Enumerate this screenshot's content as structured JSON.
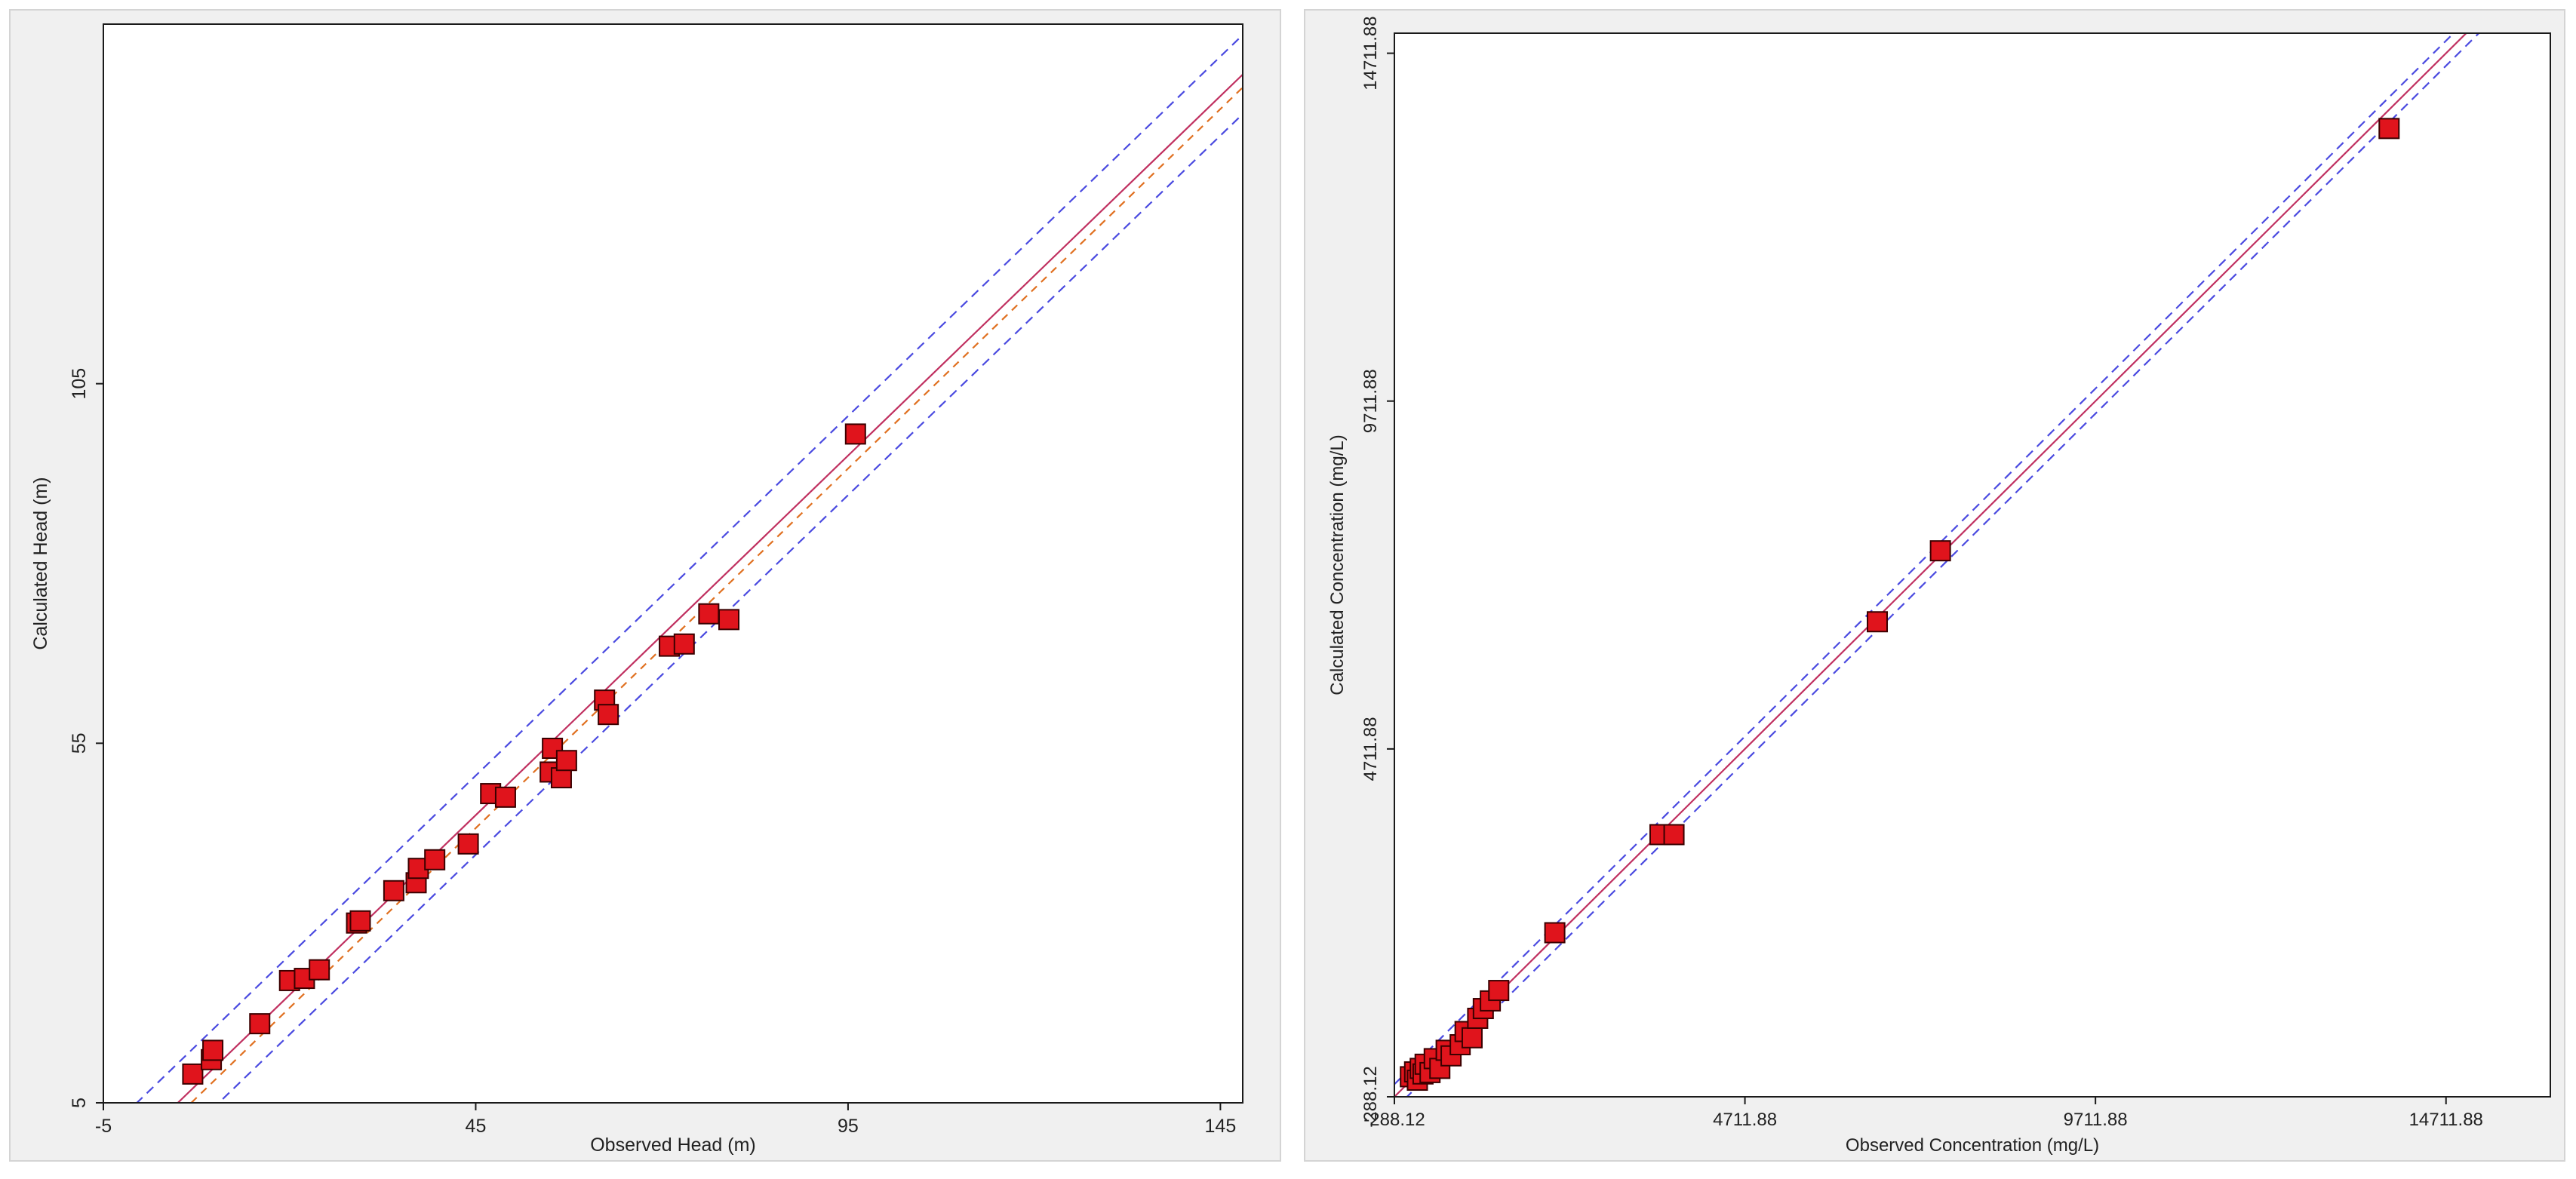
{
  "colors": {
    "marker_fill": "#e0141c",
    "marker_stroke": "#3a0000",
    "diag_line": "#c03060",
    "conf_line": "#4a4ae0",
    "pred_line": "#e07020"
  },
  "chart_data": [
    {
      "type": "scatter",
      "title": "",
      "xlabel": "Observed Head (m)",
      "ylabel": "Calculated Head (m)",
      "xlim": [
        -5,
        148
      ],
      "ylim": [
        5,
        155
      ],
      "xticks": [
        "-5",
        "45",
        "95",
        "145"
      ],
      "yticks": [
        "5",
        "55",
        "105"
      ],
      "xtick_values": [
        -5,
        45,
        95,
        145
      ],
      "ytick_values": [
        5,
        55,
        105
      ],
      "series": [
        {
          "points": [
            [
              7,
              9
            ],
            [
              9.5,
              11
            ],
            [
              9.7,
              12.3
            ],
            [
              16,
              16
            ],
            [
              20,
              22
            ],
            [
              22,
              22.3
            ],
            [
              24,
              23.5
            ],
            [
              29,
              30
            ],
            [
              29.5,
              30.3
            ],
            [
              34,
              34.5
            ],
            [
              37,
              35.6
            ],
            [
              37.3,
              37.6
            ],
            [
              39.5,
              38.8
            ],
            [
              44,
              41
            ],
            [
              47,
              48
            ],
            [
              49,
              47.5
            ],
            [
              55,
              51
            ],
            [
              55.3,
              54.3
            ],
            [
              56.5,
              50.2
            ],
            [
              57.2,
              52.6
            ],
            [
              62.3,
              61
            ],
            [
              62.8,
              59
            ],
            [
              71,
              68.5
            ],
            [
              73,
              68.8
            ],
            [
              76.3,
              73
            ],
            [
              79,
              72.2
            ],
            [
              96,
              98
            ]
          ]
        }
      ],
      "reference_lines": {
        "diagonal": true,
        "confidence_offset": 5.5,
        "prediction_offset": -1.8
      }
    },
    {
      "type": "scatter",
      "title": "",
      "xlabel": "Observed Concentration (mg/L)",
      "ylabel": "Calculated Concentration (mg/L)",
      "xlim": [
        -288.12,
        16200
      ],
      "ylim": [
        -288.12,
        15000
      ],
      "xticks": [
        "-288.12",
        "4711.88",
        "9711.88",
        "14711.88"
      ],
      "yticks": [
        "-288.12",
        "4711.88",
        "9711.88",
        "14711.88"
      ],
      "xtick_values": [
        -288.12,
        4711.88,
        9711.88,
        14711.88
      ],
      "ytick_values": [
        -288.12,
        4711.88,
        9711.88,
        14711.88
      ],
      "series": [
        {
          "points": [
            [
              -60,
              0
            ],
            [
              0,
              70
            ],
            [
              40,
              -50
            ],
            [
              80,
              120
            ],
            [
              120,
              40
            ],
            [
              150,
              180
            ],
            [
              220,
              60
            ],
            [
              280,
              260
            ],
            [
              360,
              120
            ],
            [
              450,
              380
            ],
            [
              520,
              300
            ],
            [
              650,
              460
            ],
            [
              720,
              650
            ],
            [
              820,
              560
            ],
            [
              900,
              840
            ],
            [
              980,
              980
            ],
            [
              1080,
              1090
            ],
            [
              1200,
              1240
            ],
            [
              2000,
              2070
            ],
            [
              3500,
              3480
            ],
            [
              3700,
              3480
            ],
            [
              6600,
              6540
            ],
            [
              7500,
              7560
            ],
            [
              13900,
              13630
            ]
          ]
        }
      ],
      "reference_lines": {
        "diagonal": true,
        "confidence_offset": 180
      }
    }
  ]
}
